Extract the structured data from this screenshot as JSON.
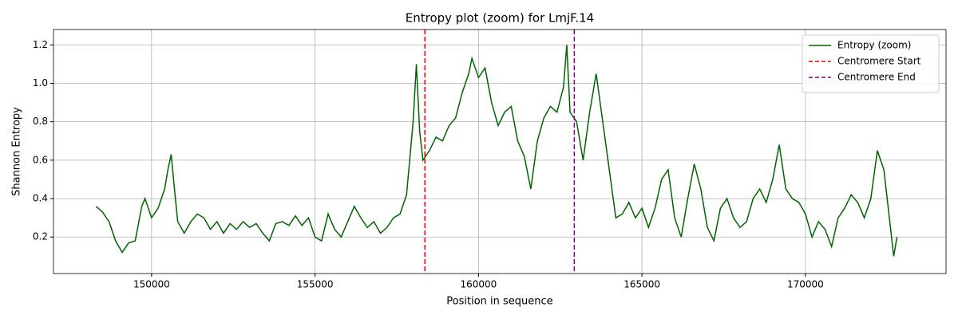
{
  "chart_data": {
    "type": "line",
    "title": "Entropy plot (zoom) for LmjF.14",
    "xlabel": "Position in sequence",
    "ylabel": "Shannon Entropy",
    "xlim": [
      147000,
      174300
    ],
    "ylim": [
      0.01,
      1.28
    ],
    "xticks": [
      150000,
      155000,
      160000,
      165000,
      170000
    ],
    "yticks": [
      0.2,
      0.4,
      0.6,
      0.8,
      {
        "value": 1,
        "label": "1.0"
      },
      1.2
    ],
    "grid": true,
    "legend": "upper right",
    "x": [
      148300,
      148500,
      148700,
      148900,
      149100,
      149300,
      149500,
      149700,
      149800,
      150000,
      150200,
      150400,
      150500,
      150600,
      150700,
      150800,
      151000,
      151200,
      151400,
      151600,
      151800,
      152000,
      152200,
      152400,
      152600,
      152800,
      153000,
      153200,
      153400,
      153600,
      153800,
      154000,
      154200,
      154400,
      154600,
      154800,
      155000,
      155200,
      155400,
      155600,
      155800,
      156000,
      156200,
      156400,
      156600,
      156800,
      157000,
      157200,
      157400,
      157600,
      157800,
      158000,
      158100,
      158200,
      158300,
      158500,
      158700,
      158900,
      159100,
      159300,
      159500,
      159700,
      159800,
      160000,
      160200,
      160400,
      160600,
      160800,
      161000,
      161200,
      161400,
      161600,
      161800,
      162000,
      162200,
      162400,
      162600,
      162700,
      162800,
      163000,
      163200,
      163400,
      163600,
      163800,
      164000,
      164200,
      164400,
      164600,
      164800,
      165000,
      165200,
      165400,
      165600,
      165800,
      166000,
      166200,
      166400,
      166600,
      166800,
      167000,
      167200,
      167400,
      167600,
      167800,
      168000,
      168200,
      168400,
      168600,
      168800,
      169000,
      169200,
      169400,
      169600,
      169800,
      170000,
      170200,
      170400,
      170600,
      170800,
      171000,
      171200,
      171400,
      171600,
      171800,
      172000,
      172200,
      172400,
      172600,
      172700,
      172800
    ],
    "series": [
      {
        "name": "Entropy (zoom)",
        "color": "#006400",
        "values": [
          0.36,
          0.33,
          0.28,
          0.18,
          0.12,
          0.17,
          0.18,
          0.36,
          0.4,
          0.3,
          0.35,
          0.45,
          0.55,
          0.63,
          0.45,
          0.28,
          0.22,
          0.28,
          0.32,
          0.3,
          0.24,
          0.28,
          0.22,
          0.27,
          0.24,
          0.28,
          0.25,
          0.27,
          0.22,
          0.18,
          0.27,
          0.28,
          0.26,
          0.31,
          0.26,
          0.3,
          0.2,
          0.18,
          0.32,
          0.24,
          0.2,
          0.28,
          0.36,
          0.3,
          0.25,
          0.28,
          0.22,
          0.25,
          0.3,
          0.32,
          0.42,
          0.8,
          1.1,
          0.75,
          0.6,
          0.65,
          0.72,
          0.7,
          0.78,
          0.82,
          0.95,
          1.05,
          1.13,
          1.03,
          1.08,
          0.9,
          0.78,
          0.85,
          0.88,
          0.7,
          0.62,
          0.45,
          0.7,
          0.82,
          0.88,
          0.85,
          0.98,
          1.2,
          0.85,
          0.8,
          0.6,
          0.85,
          1.05,
          0.8,
          0.55,
          0.3,
          0.32,
          0.38,
          0.3,
          0.35,
          0.25,
          0.35,
          0.5,
          0.55,
          0.3,
          0.2,
          0.4,
          0.58,
          0.45,
          0.25,
          0.18,
          0.35,
          0.4,
          0.3,
          0.25,
          0.28,
          0.4,
          0.45,
          0.38,
          0.5,
          0.68,
          0.45,
          0.4,
          0.38,
          0.32,
          0.2,
          0.28,
          0.24,
          0.15,
          0.3,
          0.35,
          0.42,
          0.38,
          0.3,
          0.4,
          0.65,
          0.55,
          0.25,
          0.1,
          0.2
        ]
      }
    ],
    "vlines": [
      {
        "name": "Centromere Start",
        "color": "#ff0000",
        "x": 158360
      },
      {
        "name": "Centromere End",
        "color": "#800080",
        "x": 162930
      }
    ]
  }
}
